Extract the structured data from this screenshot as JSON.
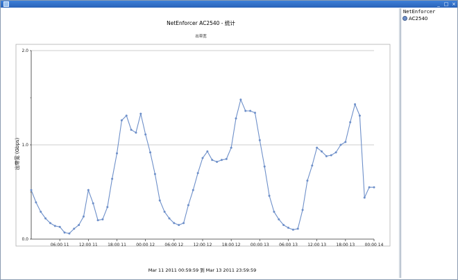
{
  "window": {
    "controls": [
      "_",
      "□",
      "×"
    ]
  },
  "chart_title": "NetEnforcer AC2540 - 统计",
  "chart_subtitle": "出带宽",
  "ylabel": "出带宽 (Gbps)",
  "range_text": "Mar 11 2011  00:59:59  到  Mar 13 2011  23:59:59",
  "side_panel": {
    "title": "NetEnforcer",
    "legend": [
      {
        "label": "AC2540",
        "color": "#6d8fc9"
      }
    ]
  },
  "chart_data": {
    "type": "line",
    "title": "NetEnforcer AC2540 - 统计",
    "subtitle": "出带宽",
    "ylabel": "出带宽 (Gbps)",
    "ylim": [
      0,
      2.0
    ],
    "yticks": [
      "0.0",
      "1.0",
      "2.0"
    ],
    "xticks": [
      {
        "label": "06:00 11",
        "hour": 6
      },
      {
        "label": "12:00 11",
        "hour": 12
      },
      {
        "label": "18:00 11",
        "hour": 18
      },
      {
        "label": "00:00 12",
        "hour": 24
      },
      {
        "label": "06:00 12",
        "hour": 30
      },
      {
        "label": "12:00 12",
        "hour": 36
      },
      {
        "label": "18:00 12",
        "hour": 42
      },
      {
        "label": "00:00 13",
        "hour": 48
      },
      {
        "label": "06:00 13",
        "hour": 54
      },
      {
        "label": "12:00 13",
        "hour": 60
      },
      {
        "label": "18:00 13",
        "hour": 66
      },
      {
        "label": "00:00 14",
        "hour": 72
      }
    ],
    "xlim": [
      0,
      72
    ],
    "grid": true,
    "series": [
      {
        "name": "AC2540",
        "color": "#6d8fc9",
        "x": [
          0,
          1,
          2,
          3,
          4,
          5,
          6,
          7,
          8,
          9,
          10,
          11,
          12,
          13,
          14,
          15,
          16,
          17,
          18,
          19,
          20,
          21,
          22,
          23,
          24,
          25,
          26,
          27,
          28,
          29,
          30,
          31,
          32,
          33,
          34,
          35,
          36,
          37,
          38,
          39,
          40,
          41,
          42,
          43,
          44,
          45,
          46,
          47,
          48,
          49,
          50,
          51,
          52,
          53,
          54,
          55,
          56,
          57,
          58,
          59,
          60,
          61,
          62,
          63,
          64,
          65,
          66,
          67,
          68,
          69,
          70,
          71,
          72
        ],
        "y": [
          0.52,
          0.39,
          0.29,
          0.22,
          0.17,
          0.14,
          0.13,
          0.07,
          0.06,
          0.11,
          0.15,
          0.24,
          0.52,
          0.38,
          0.2,
          0.21,
          0.34,
          0.64,
          0.91,
          1.26,
          1.31,
          1.16,
          1.13,
          1.33,
          1.11,
          0.92,
          0.69,
          0.41,
          0.29,
          0.22,
          0.17,
          0.15,
          0.17,
          0.36,
          0.52,
          0.7,
          0.86,
          0.93,
          0.84,
          0.82,
          0.84,
          0.85,
          0.97,
          1.28,
          1.48,
          1.36,
          1.36,
          1.34,
          1.05,
          0.77,
          0.46,
          0.29,
          0.21,
          0.15,
          0.12,
          0.1,
          0.11,
          0.31,
          0.62,
          0.78,
          0.97,
          0.93,
          0.88,
          0.89,
          0.92,
          1.0,
          1.03,
          1.24,
          1.43,
          1.31,
          0.44,
          0.55,
          0.55
        ]
      }
    ]
  }
}
